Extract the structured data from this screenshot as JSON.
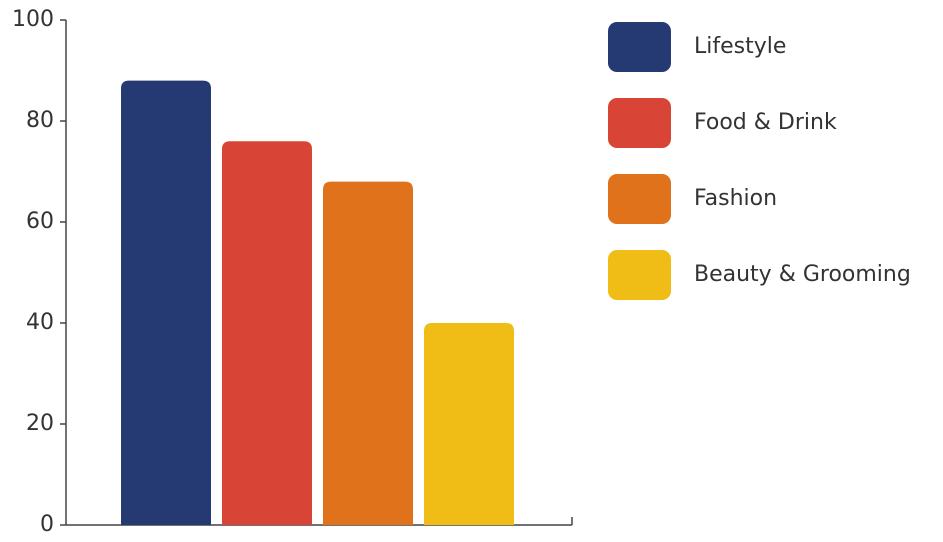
{
  "chart_data": {
    "type": "bar",
    "title": "",
    "xlabel": "",
    "ylabel": "",
    "ylim": [
      0,
      100
    ],
    "yticks": [
      0,
      20,
      40,
      60,
      80,
      100
    ],
    "grid": false,
    "legend_position": "right",
    "series": [
      {
        "name": "Lifestyle",
        "value": 88,
        "color": "#253a73"
      },
      {
        "name": "Food & Drink",
        "value": 76,
        "color": "#d84537"
      },
      {
        "name": "Fashion",
        "value": 68,
        "color": "#e0721b"
      },
      {
        "name": "Beauty & Grooming",
        "value": 40,
        "color": "#f0bc16"
      }
    ]
  }
}
